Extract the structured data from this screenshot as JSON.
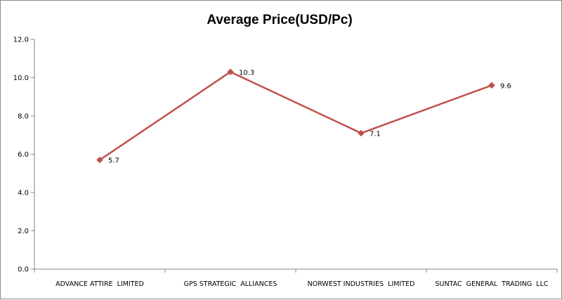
{
  "chart_data": {
    "type": "line",
    "title": "Average Price(USD/Pc)",
    "xlabel": "",
    "ylabel": "",
    "categories": [
      "ADVANCE ATTIRE  LIMITED",
      "GPS STRATEGIC  ALLIANCES",
      "NORWEST INDUSTRIES  LIMITED",
      "SUNTAC  GENERAL  TRADING  LLC"
    ],
    "series": [
      {
        "values": [
          5.7,
          10.3,
          7.1,
          9.6
        ],
        "labels": [
          "5.7",
          "10.3",
          "7.1",
          "9.6"
        ]
      }
    ],
    "yticks": [
      "0.0",
      "2.0",
      "4.0",
      "6.0",
      "8.0",
      "10.0",
      "12.0"
    ],
    "ylim": [
      0,
      12
    ],
    "grid": false,
    "legend": "none",
    "colors": {
      "line": "#c0504d",
      "axis": "#868686"
    }
  }
}
